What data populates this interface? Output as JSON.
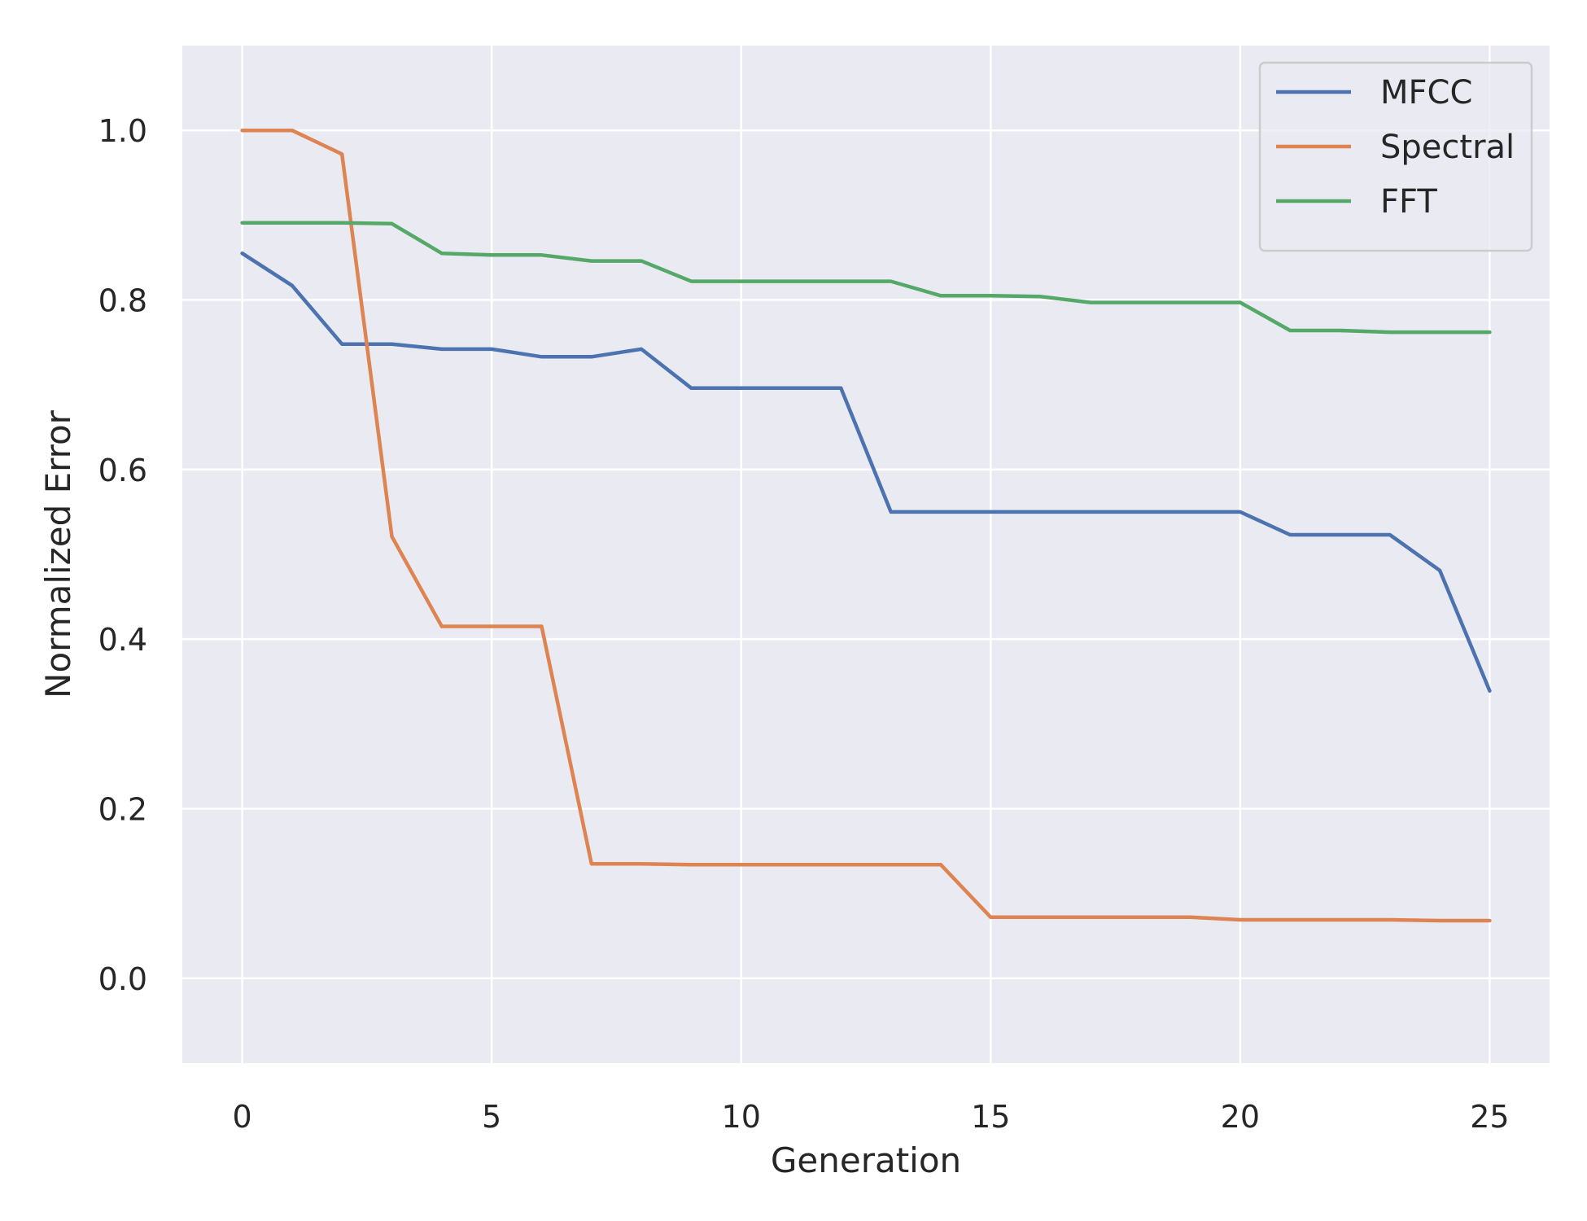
{
  "chart_data": {
    "type": "line",
    "title": "",
    "xlabel": "Generation",
    "ylabel": "Normalized Error",
    "xlim": [
      -1.2,
      26.2
    ],
    "ylim": [
      -0.1,
      1.1
    ],
    "x_ticks": [
      0,
      5,
      10,
      15,
      20,
      25
    ],
    "y_ticks": [
      0.0,
      0.2,
      0.4,
      0.6,
      0.8,
      1.0
    ],
    "x_tick_labels": [
      "0",
      "5",
      "10",
      "15",
      "20",
      "25"
    ],
    "y_tick_labels": [
      "0.0",
      "0.2",
      "0.4",
      "0.6",
      "0.8",
      "1.0"
    ],
    "grid": true,
    "legend_position": "top-right",
    "background_color": "#EAEAF2",
    "grid_color": "#FFFFFF",
    "x": [
      0,
      1,
      2,
      3,
      4,
      5,
      6,
      7,
      8,
      9,
      10,
      11,
      12,
      13,
      14,
      15,
      16,
      17,
      18,
      19,
      20,
      21,
      22,
      23,
      24,
      25
    ],
    "series": [
      {
        "name": "MFCC",
        "color": "#4C72B0",
        "values": [
          0.855,
          0.817,
          0.748,
          0.748,
          0.742,
          0.742,
          0.733,
          0.733,
          0.742,
          0.696,
          0.696,
          0.696,
          0.696,
          0.55,
          0.55,
          0.55,
          0.55,
          0.55,
          0.55,
          0.55,
          0.55,
          0.523,
          0.523,
          0.523,
          0.481,
          0.339
        ]
      },
      {
        "name": "Spectral",
        "color": "#DD8452",
        "values": [
          1.0,
          1.0,
          0.972,
          0.521,
          0.415,
          0.415,
          0.415,
          0.135,
          0.135,
          0.134,
          0.134,
          0.134,
          0.134,
          0.134,
          0.134,
          0.072,
          0.072,
          0.072,
          0.072,
          0.072,
          0.069,
          0.069,
          0.069,
          0.069,
          0.068,
          0.068
        ]
      },
      {
        "name": "FFT",
        "color": "#55A868",
        "values": [
          0.891,
          0.891,
          0.891,
          0.89,
          0.855,
          0.853,
          0.853,
          0.846,
          0.846,
          0.822,
          0.822,
          0.822,
          0.822,
          0.822,
          0.805,
          0.805,
          0.804,
          0.797,
          0.797,
          0.797,
          0.797,
          0.764,
          0.764,
          0.762,
          0.762,
          0.762
        ]
      }
    ]
  }
}
